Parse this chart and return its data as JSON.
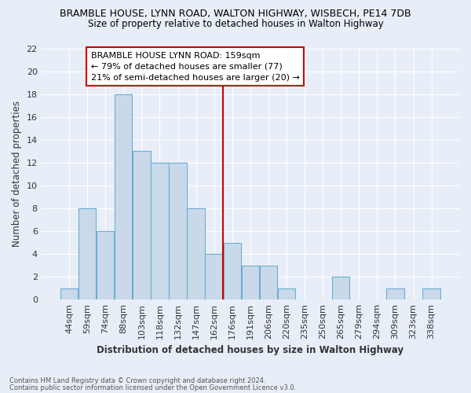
{
  "title": "BRAMBLE HOUSE, LYNN ROAD, WALTON HIGHWAY, WISBECH, PE14 7DB",
  "subtitle": "Size of property relative to detached houses in Walton Highway",
  "xlabel": "Distribution of detached houses by size in Walton Highway",
  "ylabel": "Number of detached properties",
  "categories": [
    "44sqm",
    "59sqm",
    "74sqm",
    "88sqm",
    "103sqm",
    "118sqm",
    "132sqm",
    "147sqm",
    "162sqm",
    "176sqm",
    "191sqm",
    "206sqm",
    "220sqm",
    "235sqm",
    "250sqm",
    "265sqm",
    "279sqm",
    "294sqm",
    "309sqm",
    "323sqm",
    "338sqm"
  ],
  "values": [
    1,
    8,
    6,
    18,
    13,
    12,
    12,
    8,
    4,
    5,
    3,
    3,
    1,
    0,
    0,
    2,
    0,
    0,
    1,
    0,
    1
  ],
  "bar_color": "#c9d9ea",
  "bar_edge_color": "#6aaed6",
  "vline_position": 8.5,
  "vline_color": "#cc0000",
  "ylim_max": 22,
  "yticks": [
    0,
    2,
    4,
    6,
    8,
    10,
    12,
    14,
    16,
    18,
    20,
    22
  ],
  "annotation_title": "BRAMBLE HOUSE LYNN ROAD: 159sqm",
  "annotation_line1": "← 79% of detached houses are smaller (77)",
  "annotation_line2": "21% of semi-detached houses are larger (20) →",
  "annotation_box_color": "#ffffff",
  "annotation_box_edge": "#cc0000",
  "bg_color": "#e8eef8",
  "grid_color": "#ffffff",
  "footer1": "Contains HM Land Registry data © Crown copyright and database right 2024.",
  "footer2": "Contains public sector information licensed under the Open Government Licence v3.0."
}
